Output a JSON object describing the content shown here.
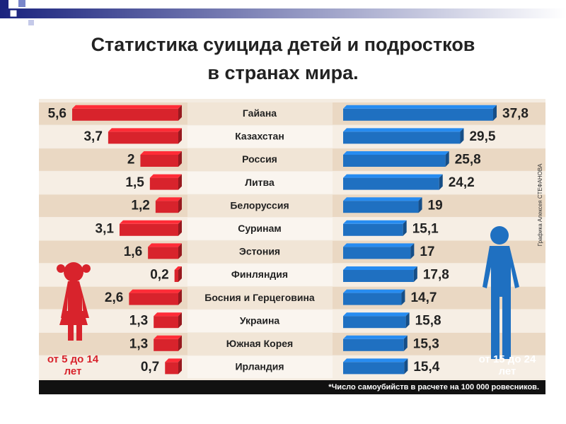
{
  "chart_data": {
    "type": "bar",
    "title": [
      "Статистика суицида детей и подростков",
      "в странах мира."
    ],
    "categories": [
      "Гайана",
      "Казахстан",
      "Россия",
      "Литва",
      "Белоруссия",
      "Суринам",
      "Эстония",
      "Финляндия",
      "Босния и Герцеговина",
      "Украина",
      "Южная Корея",
      "Ирландия"
    ],
    "series": [
      {
        "name": "от 5 до 14 лет",
        "color": "#d8232c",
        "values": [
          5.6,
          3.7,
          2,
          1.5,
          1.2,
          3.1,
          1.6,
          0.2,
          2.6,
          1.3,
          1.3,
          0.7
        ],
        "value_labels": [
          "5,6",
          "3,7",
          "2",
          "1,5",
          "1,2",
          "3,1",
          "1,6",
          "0,2",
          "2,6",
          "1,3",
          "1,3",
          "0,7"
        ]
      },
      {
        "name": "от 15 до 24 лет",
        "color": "#1f70c1",
        "values": [
          37.8,
          29.5,
          25.8,
          24.2,
          19,
          15.1,
          17,
          17.8,
          14.7,
          15.8,
          15.3,
          15.4
        ],
        "value_labels": [
          "37,8",
          "29,5",
          "25,8",
          "24,2",
          "19",
          "15,1",
          "17",
          "17,8",
          "14,7",
          "15,8",
          "15,3",
          "15,4"
        ]
      }
    ],
    "footnote": "*Число самоубийств в расчете на 100 000 ровесников.",
    "credit": "Графика Алексея СТЕФАНОВА"
  }
}
